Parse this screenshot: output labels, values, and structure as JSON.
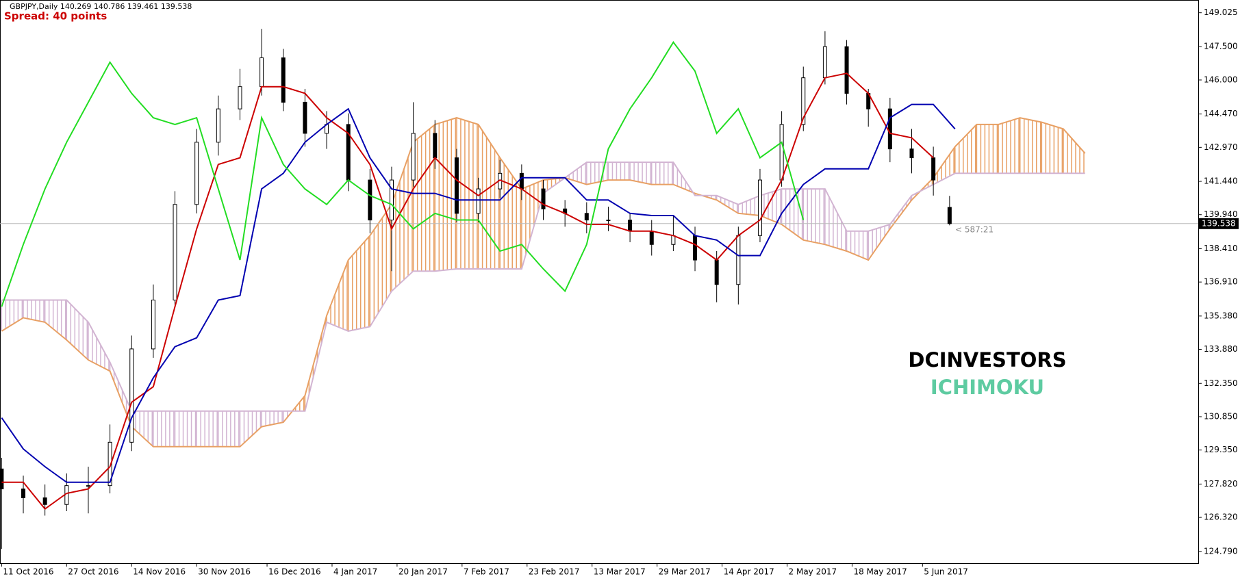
{
  "chart_data": {
    "type": "candlestick",
    "title": "GBPJPY,Daily  140.269 140.786 139.461 139.538",
    "subtitle": "Spread: 40 points",
    "annotations": [
      "< 587:21"
    ],
    "watermark": [
      "DCINVESTORS",
      "ICHIMOKU"
    ],
    "watermark_colors": [
      "#000000",
      "#5ecba1"
    ],
    "last_price": 139.538,
    "xlim": [
      -0.3,
      220.9
    ],
    "ylim": [
      124.26,
      149.6
    ],
    "xticks": [
      {
        "value": 0,
        "label": "11 Oct 2016"
      },
      {
        "value": 12,
        "label": "27 Oct 2016"
      },
      {
        "value": 24,
        "label": "14 Nov 2016"
      },
      {
        "value": 36,
        "label": "30 Nov 2016"
      },
      {
        "value": 49,
        "label": "16 Dec 2016"
      },
      {
        "value": 61,
        "label": "4 Jan 2017"
      },
      {
        "value": 73,
        "label": "20 Jan 2017"
      },
      {
        "value": 85,
        "label": "7 Feb 2017"
      },
      {
        "value": 97,
        "label": "23 Feb 2017"
      },
      {
        "value": 109,
        "label": "13 Mar 2017"
      },
      {
        "value": 121,
        "label": "29 Mar 2017"
      },
      {
        "value": 133,
        "label": "14 Apr 2017"
      },
      {
        "value": 145,
        "label": "2 May 2017"
      },
      {
        "value": 157,
        "label": "18 May 2017"
      },
      {
        "value": 170,
        "label": "5 Jun 2017"
      }
    ],
    "yticks": [
      149.025,
      {
        "value": 147.5,
        "label": "147.500"
      },
      {
        "value": 146.0,
        "label": "146.000"
      },
      {
        "value": 144.47,
        "label": "144.470"
      },
      {
        "value": 142.97,
        "label": "142.970"
      },
      {
        "value": 141.44,
        "label": "141.440"
      },
      {
        "value": 139.94,
        "label": "139.940"
      },
      {
        "value": 138.41,
        "label": "138.410"
      },
      {
        "value": 136.91,
        "label": "136.910"
      },
      {
        "value": 135.38,
        "label": "135.380"
      },
      {
        "value": 133.88,
        "label": "133.880"
      },
      {
        "value": 132.35,
        "label": "132.350"
      },
      {
        "value": 130.85,
        "label": "130.850"
      },
      {
        "value": 129.35,
        "label": "129.350"
      },
      {
        "value": 127.82,
        "label": "127.820"
      },
      {
        "value": 126.32,
        "label": "126.320"
      },
      {
        "value": 124.79,
        "label": "124.790"
      }
    ],
    "candle_up_color": "#ffffff",
    "candle_down_color": "#000000",
    "ohlc": {
      "x": [
        0,
        4,
        8,
        12,
        16,
        20,
        24,
        28,
        32,
        36,
        40,
        44,
        48,
        52,
        56,
        60,
        64,
        68,
        72,
        76,
        80,
        84,
        88,
        92,
        96,
        100,
        104,
        108,
        112,
        116,
        120,
        124,
        128,
        132,
        136,
        140,
        144,
        148,
        152,
        156,
        160,
        164,
        168,
        172,
        175
      ],
      "open": [
        128.5,
        127.6,
        127.2,
        126.9,
        127.75,
        127.75,
        129.7,
        133.9,
        136.1,
        140.4,
        143.2,
        144.7,
        145.7,
        147.0,
        145.0,
        143.6,
        144.0,
        141.5,
        139.7,
        141.5,
        143.6,
        142.5,
        140.0,
        141.1,
        141.8,
        141.1,
        140.2,
        140.0,
        139.7,
        139.7,
        139.2,
        138.6,
        139.0,
        137.9,
        136.8,
        139.0,
        141.5,
        144.0,
        146.1,
        147.5,
        145.4,
        144.7,
        142.9,
        142.5,
        140.269
      ],
      "high": [
        129.0,
        128.2,
        127.8,
        128.3,
        128.6,
        130.5,
        134.5,
        136.8,
        141.0,
        143.8,
        145.3,
        146.5,
        148.3,
        147.4,
        145.6,
        144.6,
        144.5,
        142.0,
        142.1,
        145.0,
        144.2,
        142.9,
        141.6,
        142.4,
        142.2,
        141.5,
        140.6,
        140.5,
        140.3,
        140.0,
        139.7,
        139.9,
        139.4,
        138.3,
        139.4,
        142.0,
        144.6,
        146.6,
        148.2,
        147.8,
        145.6,
        145.2,
        143.8,
        143.0,
        140.786
      ],
      "low": [
        124.9,
        126.5,
        126.4,
        126.6,
        126.5,
        127.4,
        129.3,
        133.5,
        135.8,
        140.0,
        142.6,
        144.2,
        145.3,
        144.6,
        143.0,
        142.9,
        141.0,
        139.1,
        137.4,
        141.2,
        142.0,
        139.6,
        139.6,
        140.7,
        140.6,
        139.7,
        139.4,
        139.1,
        139.2,
        138.7,
        138.1,
        138.3,
        137.4,
        136.0,
        135.9,
        138.7,
        141.2,
        143.7,
        145.8,
        144.9,
        143.9,
        142.3,
        141.8,
        140.8,
        139.461
      ],
      "close": [
        127.6,
        127.2,
        126.9,
        127.75,
        127.75,
        129.7,
        133.9,
        136.1,
        140.4,
        143.2,
        144.7,
        145.7,
        147.0,
        145.0,
        143.6,
        144.0,
        141.5,
        139.7,
        141.5,
        143.6,
        142.5,
        140.0,
        141.1,
        141.8,
        141.1,
        140.2,
        140.0,
        139.7,
        139.7,
        139.2,
        138.6,
        139.0,
        137.9,
        136.8,
        139.0,
        141.5,
        144.0,
        146.1,
        147.5,
        145.4,
        144.7,
        142.9,
        142.5,
        141.5,
        139.538
      ]
    },
    "x": [
      0,
      4,
      8,
      12,
      16,
      20,
      24,
      28,
      32,
      36,
      40,
      44,
      48,
      52,
      56,
      60,
      64,
      68,
      72,
      76,
      80,
      84,
      88,
      92,
      96,
      100,
      104,
      108,
      112,
      116,
      120,
      124,
      128,
      132,
      136,
      140,
      144,
      148,
      152,
      156,
      160,
      164,
      168,
      172,
      176,
      180,
      184,
      188,
      192,
      196,
      200
    ],
    "series": [
      {
        "color": "#cc0000",
        "values": [
          127.9,
          127.9,
          126.7,
          127.4,
          127.6,
          128.6,
          131.5,
          132.2,
          135.8,
          139.3,
          142.2,
          142.5,
          145.7,
          145.7,
          145.4,
          144.3,
          143.6,
          142.2,
          139.3,
          141.1,
          142.5,
          141.5,
          140.8,
          141.5,
          141.1,
          140.4,
          140.0,
          139.5,
          139.5,
          139.2,
          139.2,
          139.0,
          138.6,
          137.9,
          139.0,
          139.7,
          141.5,
          144.3,
          146.1,
          146.3,
          145.4,
          143.6,
          143.4,
          142.5,
          null,
          null,
          null,
          null,
          null,
          null,
          null
        ]
      },
      {
        "color": "#0000b0",
        "values": [
          130.8,
          129.4,
          128.6,
          127.9,
          127.9,
          127.9,
          130.8,
          132.6,
          134.0,
          134.4,
          136.1,
          136.3,
          141.1,
          141.8,
          143.2,
          144.0,
          144.7,
          142.5,
          141.1,
          140.9,
          140.9,
          140.6,
          140.6,
          140.6,
          141.6,
          141.6,
          141.6,
          140.6,
          140.6,
          140.0,
          139.9,
          139.9,
          139.0,
          138.8,
          138.1,
          138.1,
          140.0,
          141.3,
          142.0,
          142.0,
          142.0,
          144.3,
          144.9,
          144.9,
          143.8,
          null,
          null,
          null,
          null,
          null,
          null
        ]
      },
      {
        "color": "#22dd22",
        "values": [
          135.8,
          138.6,
          141.1,
          143.2,
          145.0,
          146.8,
          145.4,
          144.3,
          144.0,
          144.3,
          141.1,
          137.9,
          144.3,
          142.2,
          141.1,
          140.4,
          141.5,
          140.8,
          140.4,
          139.3,
          140.0,
          139.7,
          139.7,
          138.3,
          138.6,
          137.5,
          136.5,
          138.6,
          142.9,
          144.7,
          146.1,
          147.7,
          146.4,
          143.6,
          144.7,
          142.5,
          143.2,
          139.7,
          null,
          null,
          null,
          null,
          null,
          null,
          null,
          null,
          null,
          null,
          null,
          null,
          null
        ]
      }
    ],
    "cloud": {
      "span_a": {
        "color": "#e8a064",
        "values": [
          134.7,
          135.3,
          135.1,
          134.3,
          133.4,
          132.9,
          130.4,
          129.5,
          129.5,
          129.5,
          129.5,
          129.5,
          130.4,
          130.6,
          131.8,
          135.4,
          137.9,
          139.0,
          140.4,
          143.2,
          144.0,
          144.3,
          144.0,
          142.5,
          141.1,
          141.5,
          141.6,
          141.3,
          141.5,
          141.5,
          141.3,
          141.3,
          140.9,
          140.6,
          140.0,
          139.9,
          139.5,
          138.8,
          138.6,
          138.3,
          137.9,
          139.3,
          140.6,
          141.6,
          143.0,
          144.0,
          144.0,
          144.3,
          144.1,
          143.8,
          142.7
        ]
      },
      "span_b": {
        "color": "#d2b4d2",
        "values": [
          136.1,
          136.1,
          136.1,
          136.1,
          135.1,
          133.3,
          131.1,
          131.1,
          131.1,
          131.1,
          131.1,
          131.1,
          131.1,
          131.1,
          131.1,
          135.1,
          134.7,
          134.9,
          136.5,
          137.4,
          137.4,
          137.5,
          137.5,
          137.5,
          137.5,
          140.9,
          141.6,
          142.3,
          142.3,
          142.3,
          142.3,
          142.3,
          140.8,
          140.8,
          140.4,
          140.8,
          141.1,
          141.1,
          141.1,
          139.2,
          139.2,
          139.5,
          140.8,
          141.3,
          141.8,
          141.8,
          141.8,
          141.8,
          141.8,
          141.8,
          141.8
        ]
      }
    }
  }
}
